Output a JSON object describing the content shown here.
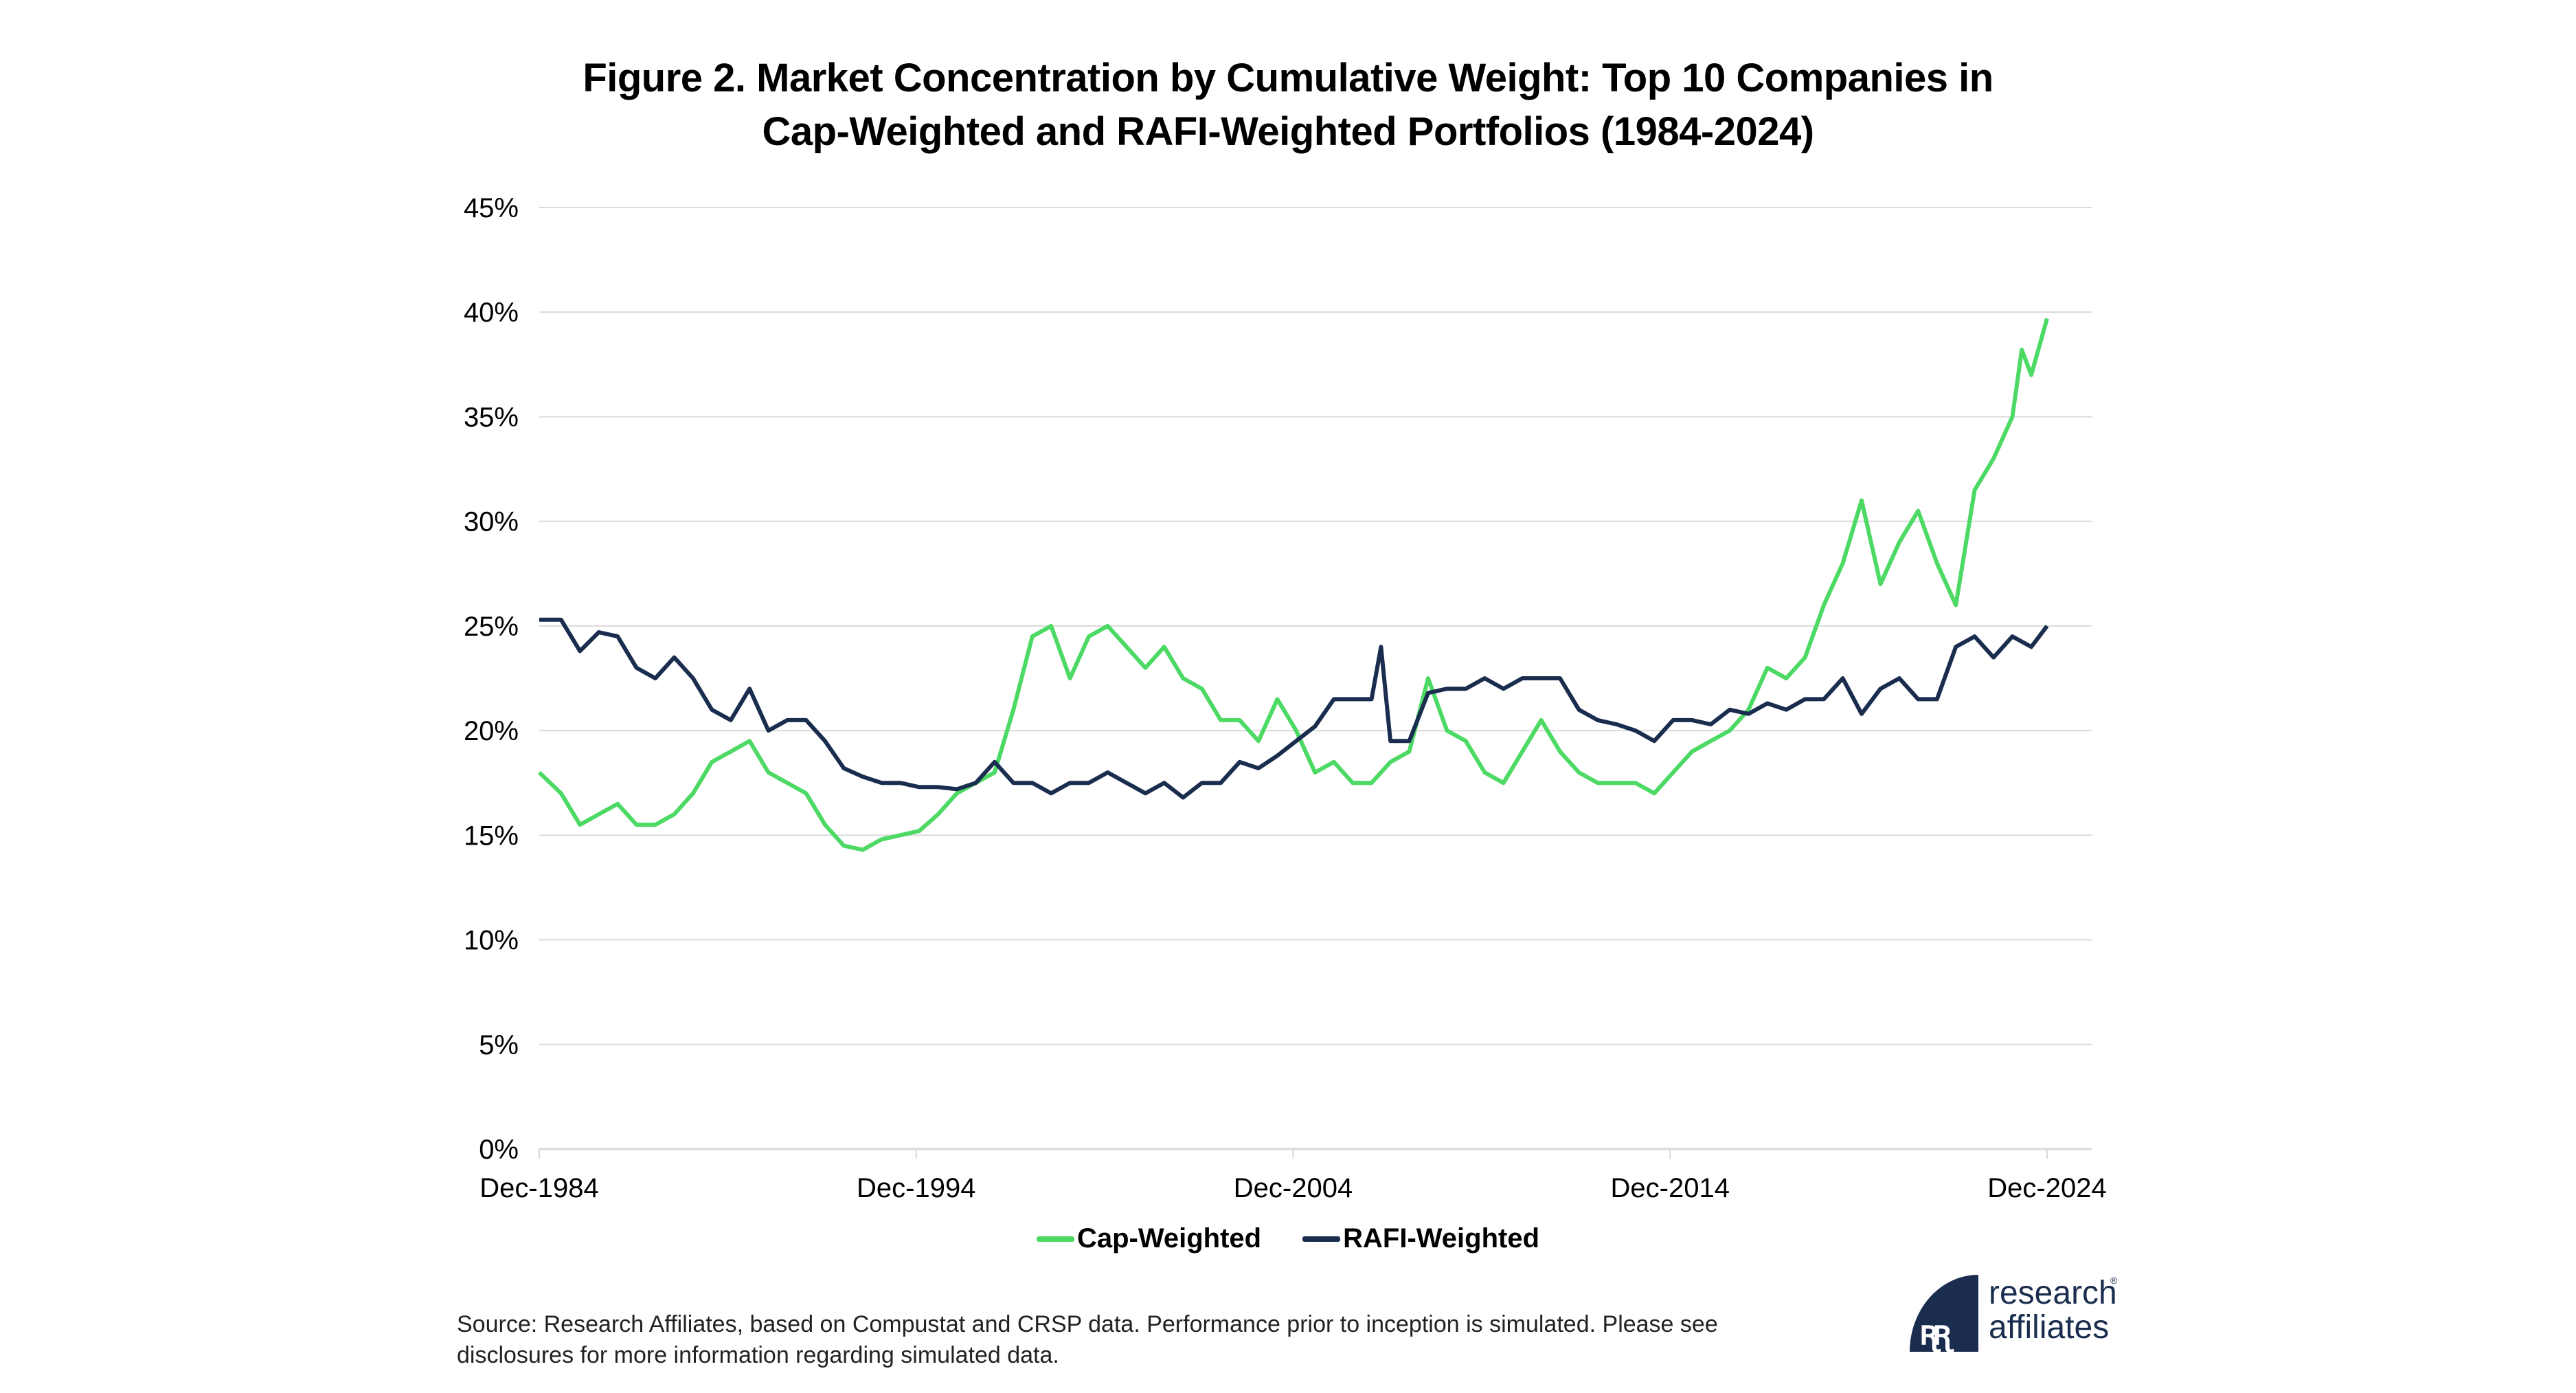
{
  "title_line1": "Figure 2. Market Concentration by Cumulative Weight: Top 10 Companies in",
  "title_line2": "Cap-Weighted and RAFI-Weighted Portfolios (1984-2024)",
  "source_line1": "Source: Research Affiliates, based on Compustat and CRSP data. Performance prior to inception is simulated. Please see",
  "source_line2": "disclosures for more information regarding simulated data.",
  "logo": {
    "line1": "research",
    "line2": "affiliates",
    "reg": "®",
    "glyph": "ꭆꭆ"
  },
  "colors": {
    "cap": "#4cd964",
    "rafi": "#1a2d4e",
    "grid": "#d9d9d9"
  },
  "chart_data": {
    "type": "line",
    "title": "Figure 2. Market Concentration by Cumulative Weight: Top 10 Companies in Cap-Weighted and RAFI-Weighted Portfolios (1984-2024)",
    "xlabel": "",
    "ylabel": "",
    "ylim": [
      0,
      45
    ],
    "xlim": [
      1984.92,
      2024.92
    ],
    "y_ticks": [
      "0%",
      "5%",
      "10%",
      "15%",
      "20%",
      "25%",
      "30%",
      "35%",
      "40%",
      "45%"
    ],
    "y_tick_values": [
      0,
      5,
      10,
      15,
      20,
      25,
      30,
      35,
      40,
      45
    ],
    "x_ticks": [
      "Dec-1984",
      "Dec-1994",
      "Dec-2004",
      "Dec-2014",
      "Dec-2024"
    ],
    "x_tick_values": [
      1984.92,
      1994.92,
      2004.92,
      2014.92,
      2024.92
    ],
    "grid": true,
    "legend_position": "bottom",
    "series": [
      {
        "name": "Cap-Weighted",
        "color": "#4cd964",
        "x": [
          1984.92,
          1985.5,
          1986,
          1986.5,
          1987,
          1987.5,
          1988,
          1988.5,
          1989,
          1989.5,
          1990,
          1990.5,
          1991,
          1991.5,
          1992,
          1992.5,
          1993,
          1993.5,
          1994,
          1994.5,
          1995,
          1995.5,
          1996,
          1996.5,
          1997,
          1997.5,
          1998,
          1998.5,
          1999,
          1999.5,
          2000,
          2000.5,
          2001,
          2001.5,
          2002,
          2002.5,
          2003,
          2003.5,
          2004,
          2004.5,
          2005,
          2005.5,
          2006,
          2006.5,
          2007,
          2007.5,
          2008,
          2008.5,
          2009,
          2009.5,
          2010,
          2010.5,
          2011,
          2011.5,
          2012,
          2012.5,
          2013,
          2013.5,
          2014,
          2014.5,
          2015,
          2015.5,
          2016,
          2016.5,
          2017,
          2017.5,
          2018,
          2018.5,
          2019,
          2019.5,
          2020,
          2020.5,
          2021,
          2021.5,
          2022,
          2022.5,
          2023,
          2023.5,
          2024,
          2024.25,
          2024.5,
          2024.92
        ],
        "values": [
          18,
          17,
          15.5,
          16,
          16.5,
          15.5,
          15.5,
          16,
          17,
          18.5,
          19,
          19.5,
          18,
          17.5,
          17,
          15.5,
          14.5,
          14.3,
          14.8,
          15,
          15.2,
          16,
          17,
          17.5,
          18,
          21,
          24.5,
          25,
          22.5,
          24.5,
          25,
          24,
          23,
          24,
          22.5,
          22,
          20.5,
          20.5,
          19.5,
          21.5,
          20,
          18,
          18.5,
          17.5,
          17.5,
          18.5,
          19,
          22.5,
          20,
          19.5,
          18,
          17.5,
          19,
          20.5,
          19,
          18,
          17.5,
          17.5,
          17.5,
          17,
          18,
          19,
          19.5,
          20,
          21,
          23,
          22.5,
          23.5,
          26,
          28,
          31,
          27,
          29,
          30.5,
          28,
          26,
          31.5,
          33,
          35,
          38.2,
          37,
          39.7
        ]
      },
      {
        "name": "RAFI-Weighted",
        "color": "#1a2d4e",
        "x": [
          1984.92,
          1985.5,
          1986,
          1986.5,
          1987,
          1987.5,
          1988,
          1988.5,
          1989,
          1989.5,
          1990,
          1990.5,
          1991,
          1991.5,
          1992,
          1992.5,
          1993,
          1993.5,
          1994,
          1994.5,
          1995,
          1995.5,
          1996,
          1996.5,
          1997,
          1997.5,
          1998,
          1998.5,
          1999,
          1999.5,
          2000,
          2000.5,
          2001,
          2001.5,
          2002,
          2002.5,
          2003,
          2003.5,
          2004,
          2004.5,
          2005,
          2005.5,
          2006,
          2006.5,
          2007,
          2007.25,
          2007.5,
          2008,
          2008.5,
          2009,
          2009.5,
          2010,
          2010.5,
          2011,
          2011.5,
          2012,
          2012.5,
          2013,
          2013.5,
          2014,
          2014.5,
          2015,
          2015.5,
          2016,
          2016.5,
          2017,
          2017.5,
          2018,
          2018.5,
          2019,
          2019.5,
          2020,
          2020.5,
          2021,
          2021.5,
          2022,
          2022.5,
          2023,
          2023.5,
          2024,
          2024.5,
          2024.92
        ],
        "values": [
          25.3,
          25.3,
          23.8,
          24.7,
          24.5,
          23,
          22.5,
          23.5,
          22.5,
          21,
          20.5,
          22,
          20,
          20.5,
          20.5,
          19.5,
          18.2,
          17.8,
          17.5,
          17.5,
          17.3,
          17.3,
          17.2,
          17.5,
          18.5,
          17.5,
          17.5,
          17,
          17.5,
          17.5,
          18,
          17.5,
          17,
          17.5,
          16.8,
          17.5,
          17.5,
          18.5,
          18.2,
          18.8,
          19.5,
          20.2,
          21.5,
          21.5,
          21.5,
          24,
          19.5,
          19.5,
          21.8,
          22,
          22,
          22.5,
          22,
          22.5,
          22.5,
          22.5,
          21,
          20.5,
          20.3,
          20,
          19.5,
          20.5,
          20.5,
          20.3,
          21,
          20.8,
          21.3,
          21,
          21.5,
          21.5,
          22.5,
          20.8,
          22,
          22.5,
          21.5,
          21.5,
          24,
          24.5,
          23.5,
          24.5,
          24,
          25
        ]
      }
    ]
  }
}
